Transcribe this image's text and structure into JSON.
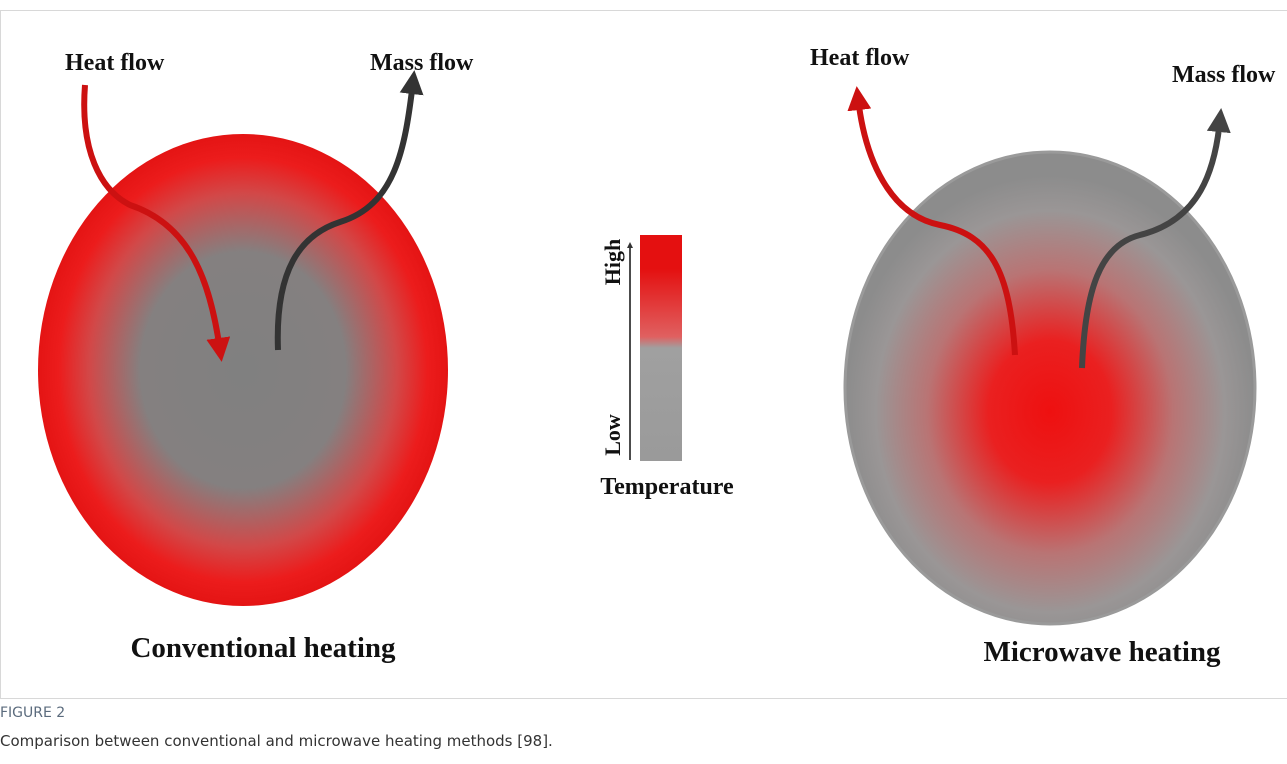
{
  "figure": {
    "left": {
      "heat_label": "Heat flow",
      "mass_label": "Mass flow",
      "title": "Conventional heating"
    },
    "right": {
      "heat_label": "Heat flow",
      "mass_label": "Mass flow",
      "title": "Microwave heating"
    },
    "legend": {
      "high": "High",
      "low": "Low",
      "label": "Temperature"
    }
  },
  "caption": {
    "label": "FIGURE 2",
    "text": "Comparison between conventional and microwave heating methods [98]."
  }
}
